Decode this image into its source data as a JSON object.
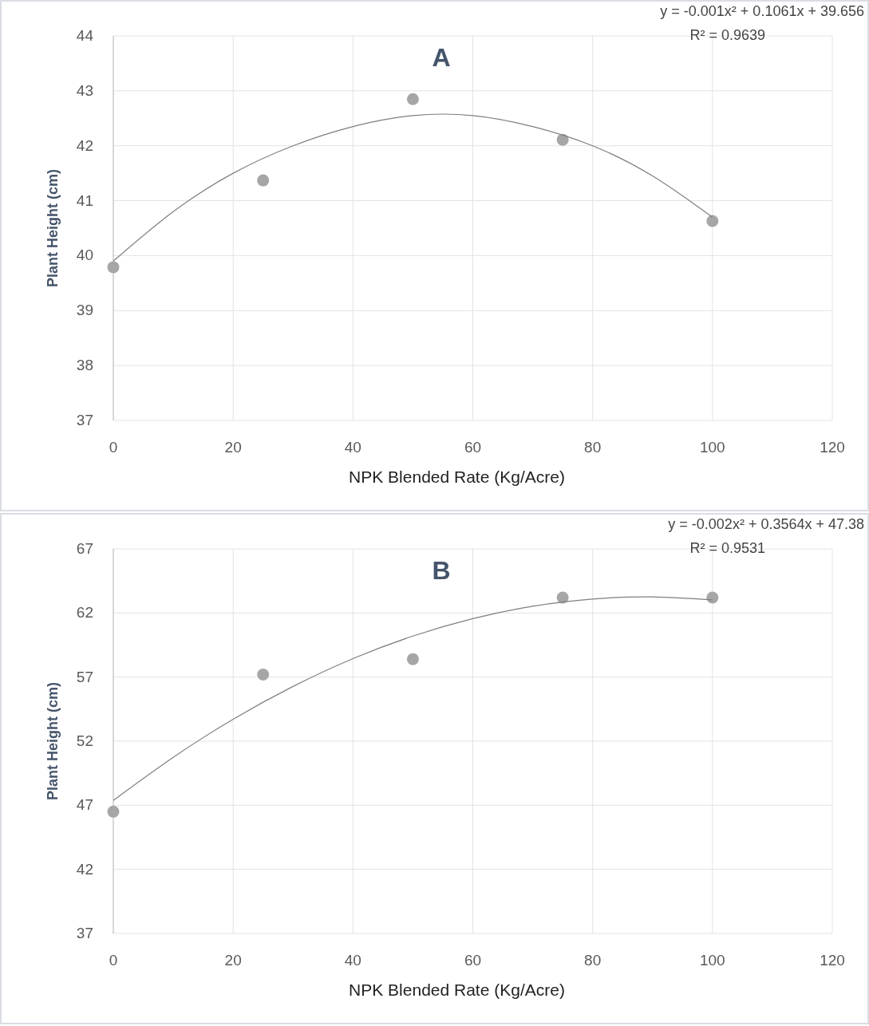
{
  "chart_data": [
    {
      "type": "scatter",
      "title": "A",
      "xlabel": "NPK Blended Rate (Kg/Acre)",
      "ylabel": "Plant Height (cm)",
      "xlim": [
        0,
        120
      ],
      "xticks": [
        0,
        20,
        40,
        60,
        80,
        100,
        120
      ],
      "ylim": [
        37,
        44
      ],
      "yticks": [
        37,
        38,
        39,
        40,
        41,
        42,
        43,
        44
      ],
      "grid": true,
      "annotations": [
        "y = -0.001x² + 0.1061x + 39.656",
        "R² = 0.9639"
      ],
      "series": [
        {
          "color": "#a6a6a6",
          "marker": "circle",
          "x": [
            0,
            25,
            50,
            75,
            100
          ],
          "values": [
            39.79,
            41.37,
            42.85,
            42.11,
            40.63
          ]
        },
        {
          "type": "line",
          "color": "#7f7f7f",
          "marker": "none",
          "line_style": "solid",
          "x": [
            0,
            10,
            20,
            30,
            40,
            50,
            60,
            70,
            80,
            90,
            100
          ],
          "values": [
            39.9,
            40.8,
            41.5,
            42.0,
            42.35,
            42.55,
            42.55,
            42.35,
            42.0,
            41.45,
            40.7
          ]
        }
      ]
    },
    {
      "type": "scatter",
      "title": "B",
      "xlabel": "NPK Blended Rate (Kg/Acre)",
      "ylabel": "Plant Height (cm)",
      "xlim": [
        0,
        120
      ],
      "xticks": [
        0,
        20,
        40,
        60,
        80,
        100,
        120
      ],
      "ylim": [
        37,
        67
      ],
      "yticks": [
        37,
        42,
        47,
        52,
        57,
        62,
        67
      ],
      "grid": true,
      "annotations": [
        "y = -0.002x² + 0.3564x + 47.38",
        "R² = 0.9531"
      ],
      "series": [
        {
          "color": "#a6a6a6",
          "marker": "circle",
          "x": [
            0,
            25,
            50,
            75,
            100
          ],
          "values": [
            46.5,
            57.2,
            58.4,
            63.2,
            63.2
          ]
        },
        {
          "type": "line",
          "color": "#7f7f7f",
          "marker": "none",
          "line_style": "solid",
          "x": [
            0,
            10,
            20,
            30,
            40,
            50,
            60,
            70,
            80,
            90,
            100
          ],
          "values": [
            47.38,
            50.74,
            53.71,
            56.27,
            58.44,
            60.2,
            61.56,
            62.53,
            63.09,
            63.26,
            63.02
          ]
        }
      ]
    }
  ]
}
